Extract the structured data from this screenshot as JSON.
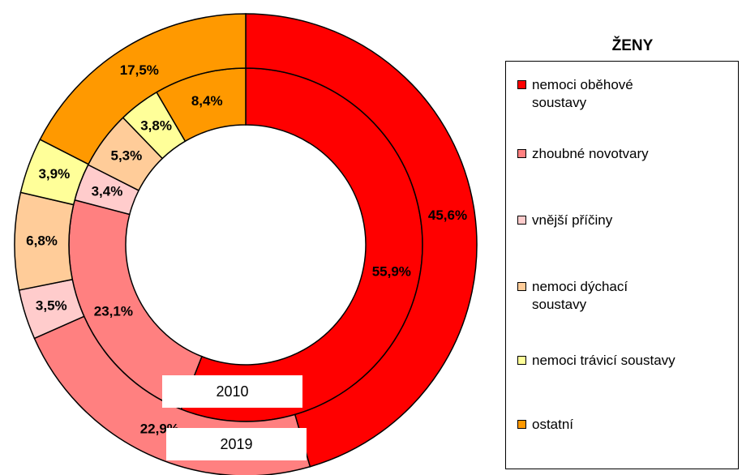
{
  "chart_data": {
    "type": "donut",
    "title": "ŽENY",
    "categories": [
      "nemoci oběhové soustavy",
      "zhoubné novotvary",
      "vnější příčiny",
      "nemoci dýchací soustavy",
      "nemoci trávicí soustavy",
      "ostatní"
    ],
    "colors": [
      "#ff0000",
      "#ff8080",
      "#ffcccc",
      "#ffcc99",
      "#ffff99",
      "#ff9900"
    ],
    "series": [
      {
        "name": "2010",
        "values": [
          55.9,
          23.1,
          3.4,
          5.3,
          3.8,
          8.4
        ],
        "value_labels": [
          "55,9%",
          "23,1%",
          "3,4%",
          "5,3%",
          "3,8%",
          "8,4%"
        ]
      },
      {
        "name": "2019",
        "values": [
          45.6,
          22.9,
          3.5,
          6.8,
          3.9,
          17.5
        ],
        "value_labels": [
          "45,6%",
          "22,9%",
          "3,5%",
          "6,8%",
          "3,9%",
          "17,5%"
        ]
      }
    ],
    "legend": "right"
  }
}
